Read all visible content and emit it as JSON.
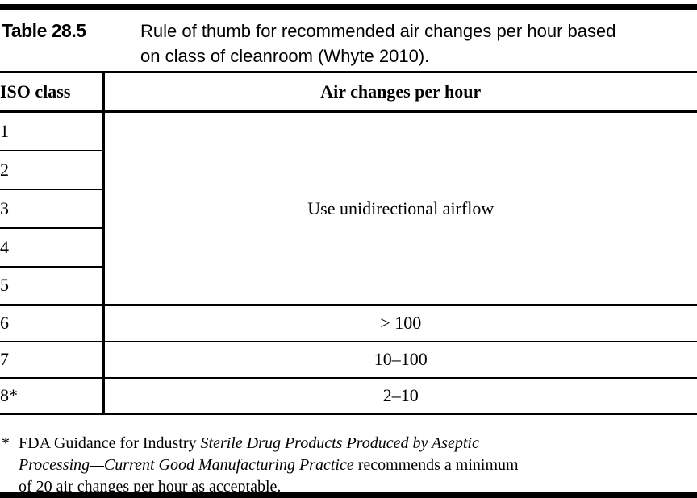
{
  "colors": {
    "text": "#000000",
    "background": "#ffffff",
    "rule": "#000000"
  },
  "caption": {
    "label": "Table 28.5",
    "lines": [
      "Rule of thumb for recommended air changes per hour based",
      "on class of cleanroom (Whyte 2010)."
    ]
  },
  "table": {
    "col1_header": "ISO class",
    "col2_header": "Air changes per hour",
    "merged_iso_classes": [
      "1",
      "2",
      "3",
      "4",
      "5"
    ],
    "merged_value": "Use unidirectional airflow",
    "rows": [
      {
        "iso": "6",
        "value": "> 100"
      },
      {
        "iso": "7",
        "value": "10–100"
      },
      {
        "iso": "8*",
        "value": "2–10"
      }
    ]
  },
  "footnote": {
    "marker": "*",
    "line1": {
      "roman": "FDA Guidance for Industry ",
      "italic": "Sterile Drug Products Produced by Aseptic"
    },
    "line2": {
      "italic": "Processing—Current Good Manufacturing Practice",
      "roman": " recommends a minimum"
    },
    "line3": {
      "roman": "of 20 air changes per hour as acceptable."
    }
  }
}
